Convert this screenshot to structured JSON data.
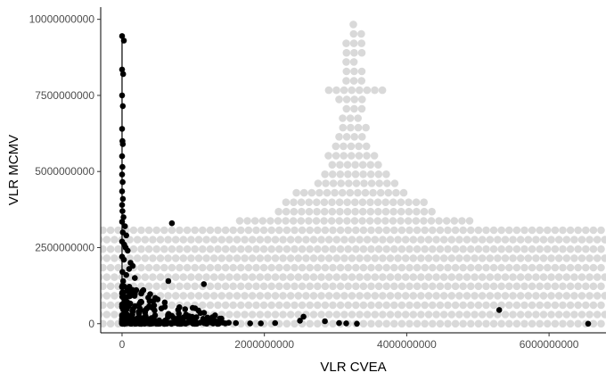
{
  "chart_data": {
    "type": "scatter",
    "title": "",
    "xlabel": "VLR CVEA",
    "ylabel": "VLR MCMV",
    "xlim": [
      -300000000,
      6800000000
    ],
    "ylim": [
      -300000000,
      10400000000
    ],
    "x_ticks": [
      0,
      2000000000,
      4000000000,
      6000000000
    ],
    "x_tick_labels": [
      "0",
      "2000000000",
      "4000000000",
      "6000000000"
    ],
    "y_ticks": [
      0,
      2500000000,
      5000000000,
      7500000000,
      10000000000
    ],
    "y_tick_labels": [
      "0",
      "2500000000",
      "5000000000",
      "7500000000",
      "10000000000"
    ],
    "grid": false,
    "colors": {
      "background_points": "#d9d9d9",
      "points": "#000000",
      "axis": "#000000",
      "tick_text": "#4d4d4d"
    },
    "series": [
      {
        "role": "background",
        "color": "#d9d9d9",
        "rows": [
          {
            "y": 0,
            "x_from": -700000000,
            "x_to": 6800000000
          },
          {
            "y": 300000000,
            "x_from": -700000000,
            "x_to": 6800000000
          },
          {
            "y": 610000000,
            "x_from": -700000000,
            "x_to": 6800000000
          },
          {
            "y": 920000000,
            "x_from": -700000000,
            "x_to": 6800000000
          },
          {
            "y": 1230000000,
            "x_from": -700000000,
            "x_to": 6800000000
          },
          {
            "y": 1530000000,
            "x_from": -700000000,
            "x_to": 6800000000
          },
          {
            "y": 1840000000,
            "x_from": -700000000,
            "x_to": 6800000000
          },
          {
            "y": 2150000000,
            "x_from": -700000000,
            "x_to": 6800000000
          },
          {
            "y": 2450000000,
            "x_from": -700000000,
            "x_to": 6800000000
          },
          {
            "y": 2760000000,
            "x_from": -700000000,
            "x_to": 6800000000
          },
          {
            "y": 3070000000,
            "x_from": -700000000,
            "x_to": 6800000000
          },
          {
            "y": 3380000000,
            "x_from": 1600000000,
            "x_to": 4900000000
          },
          {
            "y": 3680000000,
            "x_from": 2200000000,
            "x_to": 4450000000
          },
          {
            "y": 3990000000,
            "x_from": 2250000000,
            "x_to": 4250000000
          },
          {
            "y": 4300000000,
            "x_from": 2450000000,
            "x_to": 4000000000
          },
          {
            "y": 4610000000,
            "x_from": 2700000000,
            "x_to": 3900000000
          },
          {
            "y": 4910000000,
            "x_from": 2850000000,
            "x_to": 3750000000
          },
          {
            "y": 5220000000,
            "x_from": 2900000000,
            "x_to": 3650000000
          },
          {
            "y": 5520000000,
            "x_from": 2900000000,
            "x_to": 3600000000
          },
          {
            "y": 5830000000,
            "x_from": 2950000000,
            "x_to": 3450000000
          },
          {
            "y": 6140000000,
            "x_from": 3050000000,
            "x_to": 3450000000
          },
          {
            "y": 6440000000,
            "x_from": 3050000000,
            "x_to": 3450000000
          },
          {
            "y": 6750000000,
            "x_from": 3100000000,
            "x_to": 3400000000
          },
          {
            "y": 7060000000,
            "x_from": 3100000000,
            "x_to": 3400000000
          },
          {
            "y": 7370000000,
            "x_from": 3050000000,
            "x_to": 3450000000
          },
          {
            "y": 7670000000,
            "x_from": 2850000000,
            "x_to": 3700000000
          },
          {
            "y": 7980000000,
            "x_from": 3150000000,
            "x_to": 3400000000
          },
          {
            "y": 8290000000,
            "x_from": 3100000000,
            "x_to": 3400000000
          },
          {
            "y": 8600000000,
            "x_from": 3150000000,
            "x_to": 3350000000
          },
          {
            "y": 8900000000,
            "x_from": 3100000000,
            "x_to": 3450000000
          },
          {
            "y": 9210000000,
            "x_from": 3150000000,
            "x_to": 3400000000
          },
          {
            "y": 9520000000,
            "x_from": 3200000000,
            "x_to": 3400000000
          },
          {
            "y": 9830000000,
            "x_from": 3250000000,
            "x_to": 3300000000
          }
        ]
      },
      {
        "role": "foreground",
        "color": "#000000",
        "points": [
          [
            0,
            9450000000
          ],
          [
            25000000,
            9300000000
          ],
          [
            0,
            8350000000
          ],
          [
            15000000,
            8200000000
          ],
          [
            0,
            7500000000
          ],
          [
            10000000,
            7150000000
          ],
          [
            0,
            6400000000
          ],
          [
            5000000,
            6000000000
          ],
          [
            10000000,
            5900000000
          ],
          [
            0,
            5500000000
          ],
          [
            5000000,
            5150000000
          ],
          [
            0,
            4900000000
          ],
          [
            8000000,
            4650000000
          ],
          [
            0,
            4350000000
          ],
          [
            12000000,
            4100000000
          ],
          [
            0,
            3900000000
          ],
          [
            5000000,
            3700000000
          ],
          [
            20000000,
            3500000000
          ],
          [
            0,
            3350000000
          ],
          [
            40000000,
            3200000000
          ],
          [
            10000000,
            3000000000
          ],
          [
            60000000,
            2900000000
          ],
          [
            0,
            2700000000
          ],
          [
            30000000,
            2600000000
          ],
          [
            50000000,
            2500000000
          ],
          [
            80000000,
            2400000000
          ],
          [
            120000000,
            2000000000
          ],
          [
            150000000,
            1900000000
          ],
          [
            100000000,
            1800000000
          ],
          [
            180000000,
            1500000000
          ],
          [
            0,
            2200000000
          ],
          [
            25000000,
            2100000000
          ],
          [
            60000000,
            1600000000
          ],
          [
            700000000,
            3300000000
          ],
          [
            650000000,
            1400000000
          ],
          [
            1150000000,
            1300000000
          ],
          [
            600000000,
            700000000
          ],
          [
            500000000,
            800000000
          ],
          [
            300000000,
            1100000000
          ],
          [
            200000000,
            1100000000
          ],
          [
            450000000,
            600000000
          ],
          [
            350000000,
            500000000
          ],
          [
            250000000,
            500000000
          ],
          [
            150000000,
            400000000
          ],
          [
            100000000,
            900000000
          ],
          [
            80000000,
            700000000
          ],
          [
            50000000,
            600000000
          ],
          [
            30000000,
            500000000
          ],
          [
            20000000,
            300000000
          ],
          [
            10000000,
            200000000
          ],
          [
            900000000,
            300000000
          ],
          [
            1000000000,
            150000000
          ],
          [
            850000000,
            100000000
          ],
          [
            1100000000,
            350000000
          ],
          [
            1200000000,
            200000000
          ],
          [
            1300000000,
            100000000
          ],
          [
            1400000000,
            50000000
          ],
          [
            1500000000,
            30000000
          ],
          [
            1600000000,
            20000000
          ],
          [
            1800000000,
            10000000
          ],
          [
            1950000000,
            10000000
          ],
          [
            2150000000,
            20000000
          ],
          [
            2500000000,
            100000000
          ],
          [
            2550000000,
            230000000
          ],
          [
            2850000000,
            80000000
          ],
          [
            3050000000,
            20000000
          ],
          [
            3150000000,
            10000000
          ],
          [
            3300000000,
            0
          ],
          [
            5300000000,
            450000000
          ],
          [
            6550000000,
            0
          ],
          [
            0,
            1000000000
          ],
          [
            0,
            1200000000
          ],
          [
            15000000,
            1400000000
          ],
          [
            5000000,
            1700000000
          ],
          [
            35000000,
            800000000
          ],
          [
            70000000,
            300000000
          ],
          [
            110000000,
            200000000
          ],
          [
            160000000,
            150000000
          ],
          [
            220000000,
            120000000
          ],
          [
            280000000,
            90000000
          ],
          [
            330000000,
            250000000
          ],
          [
            380000000,
            70000000
          ],
          [
            420000000,
            150000000
          ],
          [
            480000000,
            60000000
          ],
          [
            520000000,
            110000000
          ],
          [
            560000000,
            40000000
          ],
          [
            620000000,
            90000000
          ],
          [
            680000000,
            30000000
          ],
          [
            740000000,
            60000000
          ],
          [
            800000000,
            20000000
          ],
          [
            950000000,
            50000000
          ],
          [
            1050000000,
            30000000
          ],
          [
            1250000000,
            40000000
          ],
          [
            1350000000,
            20000000
          ],
          [
            1450000000,
            10000000
          ]
        ]
      }
    ]
  }
}
